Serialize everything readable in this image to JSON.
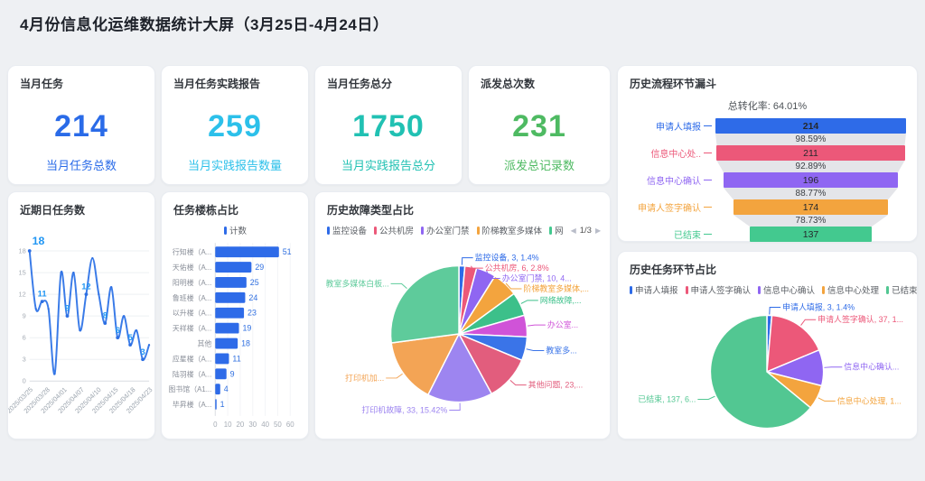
{
  "title": "4月份信息化运维数据统计大屏（3月25日-4月24日）",
  "stats": [
    {
      "title": "当月任务",
      "value": "214",
      "label": "当月任务总数",
      "color": "#2a6be8"
    },
    {
      "title": "当月任务实践报告",
      "value": "259",
      "label": "当月实践报告数量",
      "color": "#2cc0ea"
    },
    {
      "title": "当月任务总分",
      "value": "1750",
      "label": "当月实践报告总分",
      "color": "#21c1b3"
    },
    {
      "title": "派发总次数",
      "value": "231",
      "label": "派发总记录数",
      "color": "#4eba62"
    }
  ],
  "chart_data": {
    "funnel": {
      "type": "funnel",
      "title": "历史流程环节漏斗",
      "conversion_text": "总转化率: 64.01%",
      "stages": [
        {
          "label": "申请人填报",
          "value": 214,
          "color": "#2e6be8"
        },
        {
          "label": "信息中心处..",
          "value": 211,
          "color": "#ec5879"
        },
        {
          "label": "信息中心确认",
          "value": 196,
          "color": "#8f66f2"
        },
        {
          "label": "申请人签字确认",
          "value": 174,
          "color": "#f3a43e"
        },
        {
          "label": "已结束",
          "value": 137,
          "color": "#43c98f"
        }
      ],
      "conversion_steps": [
        "98.59%",
        "92.89%",
        "88.77%",
        "78.73%"
      ]
    },
    "daily_line": {
      "type": "line",
      "title": "近期日任务数",
      "x_labels": [
        "2025/03/25",
        "2025/03/28",
        "2025/04/01",
        "2025/04/07",
        "2025/04/10",
        "2025/04/15",
        "2025/04/18",
        "2025/04/23"
      ],
      "values": [
        18,
        10,
        11,
        10,
        1,
        15,
        9,
        15,
        7,
        12,
        17,
        12,
        8,
        13,
        6,
        9,
        5,
        7,
        3,
        5
      ],
      "point_labels": {
        "0": "18",
        "2": "11",
        "6": "9",
        "9": "12",
        "12": "8",
        "14": "6",
        "16": "5",
        "18": "3"
      },
      "yticks": [
        0,
        3,
        6,
        9,
        12,
        15,
        18
      ],
      "ylim": [
        0,
        18
      ],
      "line_color": "#3a7be8",
      "label_color": "#2196f3"
    },
    "building_bar": {
      "type": "bar",
      "title": "任务楼栋占比",
      "legend": "计数",
      "categories": [
        "行知楼（A...",
        "天佑楼（A...",
        "阳明楼（A...",
        "鲁班楼（A...",
        "以升楼（A...",
        "天祥楼（A...",
        "其他",
        "应星楼（A...",
        "陆羽楼（A...",
        "图书馆（A1...",
        "毕昇楼（A..."
      ],
      "values": [
        51,
        29,
        25,
        24,
        23,
        19,
        18,
        11,
        9,
        4,
        1
      ],
      "xticks": [
        0,
        10,
        20,
        30,
        40,
        50,
        60
      ],
      "bar_color": "#2e6be8",
      "value_color": "#2f6fe0"
    },
    "fault_pie": {
      "type": "pie",
      "title": "历史故障类型占比",
      "legend_items": [
        {
          "label": "监控设备",
          "color": "#2e6be8"
        },
        {
          "label": "公共机房",
          "color": "#ec5879"
        },
        {
          "label": "办公室门禁",
          "color": "#8f66f2"
        },
        {
          "label": "阶梯教室多媒体",
          "color": "#f3a43e"
        },
        {
          "label": "网",
          "color": "#43c98f"
        }
      ],
      "pager": {
        "prev": "◀",
        "text": "1/3",
        "next": "▶"
      },
      "slices": [
        {
          "name": "监控设备",
          "value": 3,
          "color": "#2e6be8",
          "label": "监控设备, 3, 1.4%"
        },
        {
          "name": "公共机房",
          "value": 6,
          "color": "#ec5879",
          "label": "公共机房, 6, 2.8%"
        },
        {
          "name": "办公室门禁",
          "value": 10,
          "color": "#8f66f2",
          "label": "办公室门禁, 10, 4..."
        },
        {
          "name": "阶梯教室多媒体",
          "value": 13,
          "color": "#f3a43e",
          "label": "阶梯教室多媒体,..."
        },
        {
          "name": "网络故障",
          "value": 12,
          "color": "#3cc08a",
          "label": "网络故障,..."
        },
        {
          "name": "办公室",
          "value": 11,
          "color": "#d053d8",
          "label": "办公室..."
        },
        {
          "name": "教室多",
          "value": 12,
          "color": "#3a74e8",
          "label": "教室多..."
        },
        {
          "name": "其他问题",
          "value": 23,
          "color": "#e25d7d",
          "label": "其他问题, 23,..."
        },
        {
          "name": "打印机故障",
          "value": 33,
          "color": "#9d85f0",
          "label": "打印机故障, 33, 15.42%"
        },
        {
          "name": "打印机加",
          "value": 33,
          "color": "#f3a455",
          "label": "打印机加..."
        },
        {
          "name": "教室多媒体白板",
          "value": 58,
          "color": "#5ecb9b",
          "label": "教室多媒体白板..."
        }
      ]
    },
    "stage_pie": {
      "type": "pie",
      "title": "历史任务环节占比",
      "legend_items": [
        {
          "label": "申请人填报",
          "color": "#2e6be8"
        },
        {
          "label": "申请人签字确认",
          "color": "#ec5879"
        },
        {
          "label": "信息中心确认",
          "color": "#8f66f2"
        },
        {
          "label": "信息中心处理",
          "color": "#f3a43e"
        },
        {
          "label": "已结束",
          "color": "#52c792"
        }
      ],
      "slices": [
        {
          "name": "申请人填报",
          "value": 3,
          "color": "#2e6be8",
          "label": "申请人填报, 3, 1.4%"
        },
        {
          "name": "申请人签字确认",
          "value": 37,
          "color": "#ec5879",
          "label": "申请人签字确认, 37, 1..."
        },
        {
          "name": "信息中心确认",
          "value": 22,
          "color": "#8f66f2",
          "label": "信息中心确认..."
        },
        {
          "name": "信息中心处理",
          "value": 15,
          "color": "#f3a43e",
          "label": "信息中心处理, 1..."
        },
        {
          "name": "已结束",
          "value": 137,
          "color": "#52c792",
          "label": "已结束, 137, 6..."
        }
      ]
    }
  }
}
